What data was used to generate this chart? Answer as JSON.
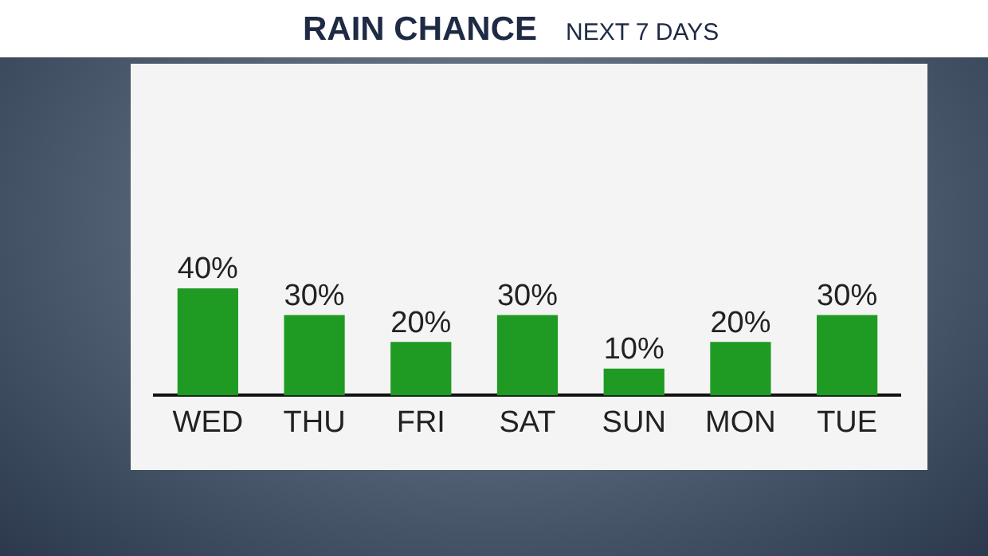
{
  "chart_data": {
    "type": "bar",
    "title": "RAIN CHANCE",
    "subtitle": "NEXT 7 DAYS",
    "categories": [
      "WED",
      "THU",
      "FRI",
      "SAT",
      "SUN",
      "MON",
      "TUE"
    ],
    "values": [
      40,
      30,
      20,
      30,
      10,
      20,
      30
    ],
    "color": "#1f9a22",
    "data_labels": true,
    "value_labels": [
      "40%",
      "30%",
      "20%",
      "30%",
      "10%",
      "20%",
      "30%"
    ],
    "grid": false,
    "legend": false
  }
}
